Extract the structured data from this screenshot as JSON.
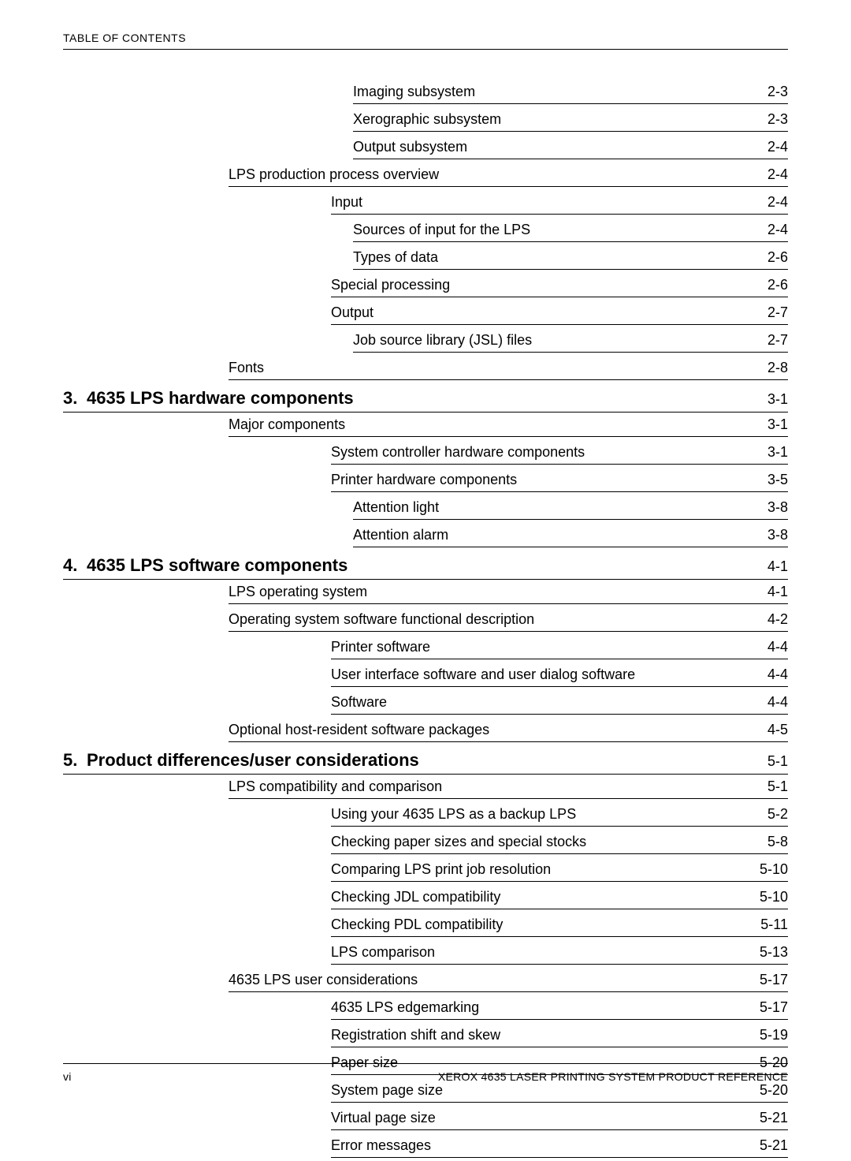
{
  "header": {
    "label": "TABLE OF CONTENTS"
  },
  "footer": {
    "pageNum": "vi",
    "ref": "XEROX 4635 LASER PRINTING SYSTEM PRODUCT REFERENCE"
  },
  "toc": [
    {
      "level": 3,
      "label": "Imaging subsystem",
      "page": "2-3"
    },
    {
      "level": 3,
      "label": "Xerographic subsystem",
      "page": "2-3"
    },
    {
      "level": 3,
      "label": "Output subsystem",
      "page": "2-4"
    },
    {
      "level": 1,
      "label": "LPS production process overview",
      "page": "2-4"
    },
    {
      "level": 2,
      "label": "Input",
      "page": "2-4"
    },
    {
      "level": 3,
      "label": "Sources of input for the LPS",
      "page": "2-4"
    },
    {
      "level": 3,
      "label": "Types of data",
      "page": "2-6"
    },
    {
      "level": 2,
      "label": "Special processing",
      "page": "2-6"
    },
    {
      "level": 2,
      "label": "Output",
      "page": "2-7"
    },
    {
      "level": 3,
      "label": "Job source library (JSL) files",
      "page": "2-7"
    },
    {
      "level": 1,
      "label": "Fonts",
      "page": "2-8"
    },
    {
      "level": 0,
      "num": "3.",
      "label": "4635 LPS hardware components",
      "page": "3-1"
    },
    {
      "level": 1,
      "label": "Major components",
      "page": "3-1"
    },
    {
      "level": 2,
      "label": "System controller hardware components",
      "page": "3-1"
    },
    {
      "level": 2,
      "label": "Printer hardware components",
      "page": "3-5"
    },
    {
      "level": 3,
      "label": "Attention light",
      "page": "3-8"
    },
    {
      "level": 3,
      "label": "Attention alarm",
      "page": "3-8"
    },
    {
      "level": 0,
      "num": "4.",
      "label": "4635 LPS software components",
      "page": "4-1"
    },
    {
      "level": 1,
      "label": "LPS operating system",
      "page": "4-1"
    },
    {
      "level": 1,
      "label": "Operating system software functional description",
      "page": "4-2"
    },
    {
      "level": 2,
      "label": "Printer software",
      "page": "4-4"
    },
    {
      "level": 2,
      "label": "User interface software and user dialog software",
      "page": "4-4"
    },
    {
      "level": 2,
      "label": "Software",
      "page": "4-4"
    },
    {
      "level": 1,
      "label": "Optional host-resident software packages",
      "page": "4-5"
    },
    {
      "level": 0,
      "num": "5.",
      "label": "Product differences/user considerations",
      "page": "5-1"
    },
    {
      "level": 1,
      "label": "LPS compatibility and comparison",
      "page": "5-1"
    },
    {
      "level": 2,
      "label": "Using your 4635 LPS as a backup LPS",
      "page": "5-2"
    },
    {
      "level": 2,
      "label": "Checking paper sizes and special stocks",
      "page": "5-8"
    },
    {
      "level": 2,
      "label": "Comparing LPS print job resolution",
      "page": "5-10"
    },
    {
      "level": 2,
      "label": "Checking JDL compatibility",
      "page": "5-10"
    },
    {
      "level": 2,
      "label": "Checking PDL compatibility",
      "page": "5-11"
    },
    {
      "level": 2,
      "label": "LPS comparison",
      "page": "5-13"
    },
    {
      "level": 1,
      "label": "4635 LPS user considerations",
      "page": "5-17"
    },
    {
      "level": 2,
      "label": "4635 LPS edgemarking",
      "page": "5-17"
    },
    {
      "level": 2,
      "label": "Registration shift and skew",
      "page": "5-19"
    },
    {
      "level": 2,
      "label": "Paper size",
      "page": "5-20"
    },
    {
      "level": 2,
      "label": "System page size",
      "page": "5-20"
    },
    {
      "level": 2,
      "label": "Virtual page size",
      "page": "5-21"
    },
    {
      "level": 2,
      "label": "Error messages",
      "page": "5-21"
    }
  ]
}
